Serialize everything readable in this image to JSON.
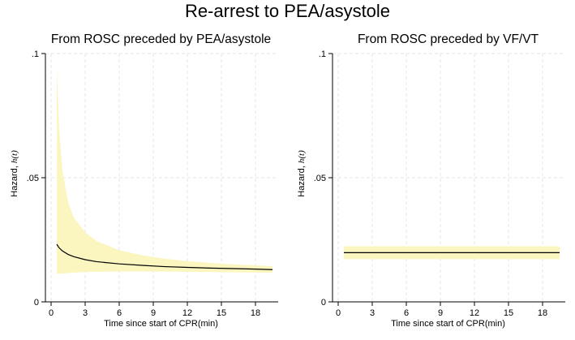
{
  "title": "Re-arrest to PEA/asystole",
  "colors": {
    "band": "#fbf6bf",
    "line": "#000000",
    "grid": "#e6e6e6",
    "axis": "#000000"
  },
  "chart_data": [
    {
      "type": "line",
      "title": "From ROSC preceded by PEA/asystole",
      "xlabel": "Time since start of CPR(min)",
      "ylabel": "Hazard, h(t)",
      "ylabel_main": "Hazard, ",
      "ylabel_italic": "h(t)",
      "xlim": [
        -0.5,
        20
      ],
      "ylim": [
        0,
        0.1
      ],
      "xticks": [
        0,
        3,
        6,
        9,
        12,
        15,
        18
      ],
      "xtick_labels": [
        "0",
        "3",
        "6",
        "9",
        "12",
        "15",
        "18"
      ],
      "yticks": [
        0,
        0.05,
        0.1
      ],
      "ytick_labels": [
        "0",
        ".05",
        ".1"
      ],
      "grid": true,
      "series": [
        {
          "x": [
            0.5,
            0.7,
            1,
            1.5,
            2,
            3,
            4,
            6,
            8,
            10,
            12,
            14,
            16,
            18,
            19.5
          ],
          "y": [
            0.0232,
            0.0218,
            0.0205,
            0.0191,
            0.0182,
            0.017,
            0.0162,
            0.0153,
            0.0147,
            0.0142,
            0.0139,
            0.0136,
            0.0134,
            0.0132,
            0.013
          ],
          "ci_lower": [
            0.0115,
            0.0113,
            0.0114,
            0.0116,
            0.0118,
            0.012,
            0.0121,
            0.0122,
            0.0122,
            0.0122,
            0.0121,
            0.012,
            0.0119,
            0.0118,
            0.0117
          ],
          "ci_upper": [
            0.095,
            0.07,
            0.053,
            0.04,
            0.034,
            0.028,
            0.0245,
            0.0208,
            0.0188,
            0.0174,
            0.0164,
            0.0157,
            0.0151,
            0.0147,
            0.0144
          ]
        }
      ]
    },
    {
      "type": "line",
      "title": "From ROSC preceded by VF/VT",
      "xlabel": "Time since start of CPR(min)",
      "ylabel": "Hazard, h(t)",
      "ylabel_main": "Hazard, ",
      "ylabel_italic": "h(t)",
      "xlim": [
        -0.5,
        20
      ],
      "ylim": [
        0,
        0.1
      ],
      "xticks": [
        0,
        3,
        6,
        9,
        12,
        15,
        18
      ],
      "xtick_labels": [
        "0",
        "3",
        "6",
        "9",
        "12",
        "15",
        "18"
      ],
      "yticks": [
        0,
        0.05,
        0.1
      ],
      "ytick_labels": [
        "0",
        ".05",
        ".1"
      ],
      "grid": true,
      "series": [
        {
          "x": [
            0.5,
            19.5
          ],
          "y": [
            0.0198,
            0.0198
          ],
          "ci_lower": [
            0.0172,
            0.0172
          ],
          "ci_upper": [
            0.0224,
            0.0224
          ]
        }
      ]
    }
  ]
}
